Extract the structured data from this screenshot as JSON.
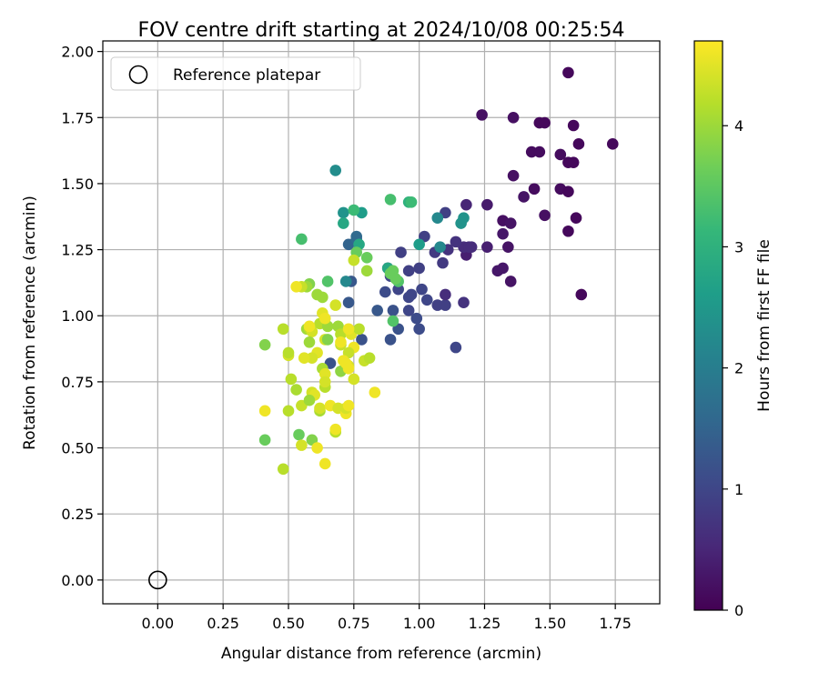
{
  "chart_data": {
    "type": "scatter",
    "title": "FOV centre drift starting at 2024/10/08 00:25:54",
    "xlabel": "Angular distance from reference (arcmin)",
    "ylabel": "Rotation from reference (arcmin)",
    "xlim": [
      -0.21,
      1.92
    ],
    "ylim": [
      -0.09,
      2.04
    ],
    "xticks": [
      0.0,
      0.25,
      0.5,
      0.75,
      1.0,
      1.25,
      1.5,
      1.75
    ],
    "xtick_labels": [
      "0.00",
      "0.25",
      "0.50",
      "0.75",
      "1.00",
      "1.25",
      "1.50",
      "1.75"
    ],
    "yticks": [
      0.0,
      0.25,
      0.5,
      0.75,
      1.0,
      1.25,
      1.5,
      1.75,
      2.0
    ],
    "ytick_labels": [
      "0.00",
      "0.25",
      "0.50",
      "0.75",
      "1.00",
      "1.25",
      "1.50",
      "1.75",
      "2.00"
    ],
    "grid": true,
    "legend": {
      "placement": "top-left",
      "entries": [
        "Reference platepar"
      ]
    },
    "reference_point": {
      "x": 0.0,
      "y": 0.0,
      "label": "Reference platepar"
    },
    "colorbar": {
      "label": "Hours from first FF file",
      "range": [
        0,
        4.7
      ],
      "ticks": [
        0,
        1,
        2,
        3,
        4
      ],
      "tick_labels": [
        "0",
        "1",
        "2",
        "3",
        "4"
      ],
      "colormap": "viridis",
      "colors": [
        "#440154",
        "#482878",
        "#3e4989",
        "#31688e",
        "#26828e",
        "#1f9e89",
        "#35b779",
        "#6ece58",
        "#b5de2b",
        "#fde725"
      ]
    },
    "points": [
      [
        1.57,
        1.92,
        0.1
      ],
      [
        1.24,
        1.76,
        0.2
      ],
      [
        1.36,
        1.75,
        0.2
      ],
      [
        1.46,
        1.73,
        0.1
      ],
      [
        1.48,
        1.73,
        0.1
      ],
      [
        1.59,
        1.72,
        0.1
      ],
      [
        1.74,
        1.65,
        0.1
      ],
      [
        1.61,
        1.65,
        0.1
      ],
      [
        1.43,
        1.62,
        0.15
      ],
      [
        1.46,
        1.62,
        0.15
      ],
      [
        1.54,
        1.61,
        0.15
      ],
      [
        1.57,
        1.58,
        0.1
      ],
      [
        1.59,
        1.58,
        0.1
      ],
      [
        1.36,
        1.53,
        0.2
      ],
      [
        1.44,
        1.48,
        0.15
      ],
      [
        1.54,
        1.48,
        0.15
      ],
      [
        1.57,
        1.47,
        0.1
      ],
      [
        1.4,
        1.45,
        0.25
      ],
      [
        1.48,
        1.38,
        0.2
      ],
      [
        1.6,
        1.37,
        0.1
      ],
      [
        1.57,
        1.32,
        0.1
      ],
      [
        1.32,
        1.36,
        0.2
      ],
      [
        1.35,
        1.35,
        0.25
      ],
      [
        1.18,
        1.42,
        0.5
      ],
      [
        1.26,
        1.42,
        0.35
      ],
      [
        1.32,
        1.31,
        0.3
      ],
      [
        1.34,
        1.26,
        0.25
      ],
      [
        1.26,
        1.26,
        0.4
      ],
      [
        1.3,
        1.17,
        0.3
      ],
      [
        1.32,
        1.18,
        0.3
      ],
      [
        1.35,
        1.13,
        0.25
      ],
      [
        1.62,
        1.08,
        0.1
      ],
      [
        1.18,
        1.23,
        0.4
      ],
      [
        1.17,
        1.26,
        0.6
      ],
      [
        1.19,
        1.26,
        0.6
      ],
      [
        1.2,
        1.26,
        0.6
      ],
      [
        1.14,
        1.28,
        0.7
      ],
      [
        1.11,
        1.25,
        0.7
      ],
      [
        1.1,
        1.39,
        0.9
      ],
      [
        1.09,
        1.2,
        0.8
      ],
      [
        1.06,
        1.24,
        0.8
      ],
      [
        1.02,
        1.3,
        0.9
      ],
      [
        1.0,
        1.18,
        0.9
      ],
      [
        0.96,
        1.17,
        0.9
      ],
      [
        0.93,
        1.24,
        0.9
      ],
      [
        0.88,
        1.18,
        1.0
      ],
      [
        0.89,
        1.15,
        1.0
      ],
      [
        0.87,
        1.09,
        1.1
      ],
      [
        0.92,
        1.1,
        1.0
      ],
      [
        0.96,
        1.07,
        1.0
      ],
      [
        0.97,
        1.08,
        1.0
      ],
      [
        1.01,
        1.1,
        1.0
      ],
      [
        1.03,
        1.06,
        1.0
      ],
      [
        1.07,
        1.04,
        0.9
      ],
      [
        1.1,
        1.04,
        0.9
      ],
      [
        1.1,
        1.08,
        0.6
      ],
      [
        1.17,
        1.05,
        0.7
      ],
      [
        1.14,
        0.88,
        1.0
      ],
      [
        0.96,
        1.02,
        1.0
      ],
      [
        0.99,
        0.99,
        1.1
      ],
      [
        1.0,
        0.95,
        1.1
      ],
      [
        0.92,
        0.95,
        1.2
      ],
      [
        0.89,
        0.91,
        1.2
      ],
      [
        0.9,
        1.02,
        1.2
      ],
      [
        0.84,
        1.02,
        1.3
      ],
      [
        0.73,
        1.05,
        1.3
      ],
      [
        0.74,
        1.13,
        1.3
      ],
      [
        0.73,
        1.27,
        1.5
      ],
      [
        0.76,
        1.29,
        1.6
      ],
      [
        0.76,
        1.3,
        1.6
      ],
      [
        0.78,
        0.91,
        1.2
      ],
      [
        0.66,
        0.82,
        1.2
      ],
      [
        0.72,
        1.13,
        2.2
      ],
      [
        0.68,
        1.55,
        2.3
      ],
      [
        0.71,
        1.39,
        2.4
      ],
      [
        0.78,
        1.39,
        2.6
      ],
      [
        0.71,
        1.35,
        2.8
      ],
      [
        0.75,
        1.4,
        3.2
      ],
      [
        0.77,
        1.27,
        2.8
      ],
      [
        1.07,
        1.37,
        2.2
      ],
      [
        1.08,
        1.26,
        2.2
      ],
      [
        1.16,
        1.35,
        2.4
      ],
      [
        1.17,
        1.37,
        2.4
      ],
      [
        1.0,
        1.27,
        2.6
      ],
      [
        0.88,
        1.18,
        2.8
      ],
      [
        0.96,
        1.43,
        3.0
      ],
      [
        0.97,
        1.43,
        3.2
      ],
      [
        0.89,
        1.44,
        3.3
      ],
      [
        0.92,
        1.13,
        3.4
      ],
      [
        0.9,
        1.17,
        3.6
      ],
      [
        0.89,
        1.16,
        3.6
      ],
      [
        0.91,
        1.14,
        3.6
      ],
      [
        0.9,
        0.98,
        3.4
      ],
      [
        0.55,
        1.29,
        3.3
      ],
      [
        0.8,
        1.22,
        3.6
      ],
      [
        0.76,
        1.24,
        3.6
      ],
      [
        0.65,
        1.13,
        3.4
      ],
      [
        0.58,
        1.12,
        3.8
      ],
      [
        0.57,
        1.11,
        4.0
      ],
      [
        0.55,
        1.11,
        4.3
      ],
      [
        0.61,
        1.08,
        4.0
      ],
      [
        0.63,
        1.07,
        4.0
      ],
      [
        0.63,
        1.01,
        4.5
      ],
      [
        0.68,
        1.04,
        4.4
      ],
      [
        0.8,
        1.17,
        4.0
      ],
      [
        0.75,
        1.21,
        4.3
      ],
      [
        0.48,
        0.95,
        4.2
      ],
      [
        0.57,
        0.95,
        4.0
      ],
      [
        0.58,
        0.95,
        4.2
      ],
      [
        0.59,
        0.94,
        4.4
      ],
      [
        0.62,
        0.97,
        4.2
      ],
      [
        0.65,
        0.96,
        4.0
      ],
      [
        0.64,
        0.91,
        4.4
      ],
      [
        0.65,
        0.91,
        3.8
      ],
      [
        0.69,
        0.96,
        4.0
      ],
      [
        0.7,
        0.93,
        4.2
      ],
      [
        0.74,
        0.93,
        4.5
      ],
      [
        0.77,
        0.95,
        4.2
      ],
      [
        0.75,
        0.88,
        4.6
      ],
      [
        0.73,
        0.86,
        4.3
      ],
      [
        0.7,
        0.89,
        4.3
      ],
      [
        0.58,
        0.9,
        4.0
      ],
      [
        0.61,
        0.86,
        4.5
      ],
      [
        0.59,
        0.84,
        4.4
      ],
      [
        0.56,
        0.84,
        4.5
      ],
      [
        0.5,
        0.85,
        4.4
      ],
      [
        0.5,
        0.86,
        4.2
      ],
      [
        0.41,
        0.89,
        3.8
      ],
      [
        0.63,
        0.8,
        4.1
      ],
      [
        0.64,
        0.78,
        4.5
      ],
      [
        0.7,
        0.79,
        3.9
      ],
      [
        0.73,
        0.81,
        4.4
      ],
      [
        0.72,
        0.82,
        4.6
      ],
      [
        0.79,
        0.83,
        4.3
      ],
      [
        0.81,
        0.84,
        4.2
      ],
      [
        0.51,
        0.76,
        4.2
      ],
      [
        0.53,
        0.72,
        4.1
      ],
      [
        0.59,
        0.71,
        4.4
      ],
      [
        0.6,
        0.7,
        4.5
      ],
      [
        0.64,
        0.73,
        4.2
      ],
      [
        0.64,
        0.75,
        4.4
      ],
      [
        0.75,
        0.76,
        4.4
      ],
      [
        0.83,
        0.71,
        4.6
      ],
      [
        0.55,
        0.66,
        4.3
      ],
      [
        0.58,
        0.68,
        4.0
      ],
      [
        0.62,
        0.64,
        4.1
      ],
      [
        0.62,
        0.65,
        4.4
      ],
      [
        0.66,
        0.66,
        4.6
      ],
      [
        0.69,
        0.65,
        4.4
      ],
      [
        0.72,
        0.63,
        4.6
      ],
      [
        0.72,
        0.65,
        4.4
      ],
      [
        0.73,
        0.66,
        4.6
      ],
      [
        0.41,
        0.64,
        4.6
      ],
      [
        0.5,
        0.64,
        4.2
      ],
      [
        0.68,
        0.56,
        4.2
      ],
      [
        0.68,
        0.57,
        4.6
      ],
      [
        0.41,
        0.53,
        3.6
      ],
      [
        0.54,
        0.55,
        3.6
      ],
      [
        0.59,
        0.53,
        3.8
      ],
      [
        0.55,
        0.51,
        4.4
      ],
      [
        0.61,
        0.5,
        4.6
      ],
      [
        0.48,
        0.42,
        4.2
      ],
      [
        0.64,
        0.44,
        4.6
      ],
      [
        0.58,
        0.96,
        4.6
      ],
      [
        0.64,
        0.99,
        4.6
      ],
      [
        0.53,
        1.11,
        4.6
      ],
      [
        0.7,
        0.9,
        4.6
      ],
      [
        0.71,
        0.83,
        4.6
      ],
      [
        0.73,
        0.95,
        4.6
      ],
      [
        0.73,
        0.8,
        4.6
      ]
    ]
  }
}
